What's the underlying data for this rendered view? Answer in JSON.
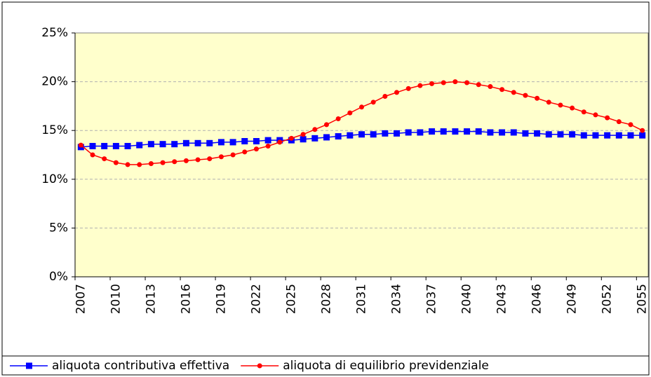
{
  "chart_data": {
    "type": "line",
    "categories": [
      "2007",
      null,
      null,
      "2010",
      null,
      null,
      "2013",
      null,
      null,
      "2016",
      null,
      null,
      "2019",
      null,
      null,
      "2022",
      null,
      null,
      "2025",
      null,
      null,
      "2028",
      null,
      null,
      "2031",
      null,
      null,
      "2034",
      null,
      null,
      "2037",
      null,
      null,
      "2040",
      null,
      null,
      "2043",
      null,
      null,
      "2046",
      null,
      null,
      "2049",
      null,
      null,
      "2052",
      null,
      null,
      "2055"
    ],
    "series": [
      {
        "name": "aliquota contributiva effettiva",
        "color": "#0000ff",
        "marker": "square",
        "values": [
          13.3,
          13.4,
          13.4,
          13.4,
          13.4,
          13.5,
          13.6,
          13.6,
          13.6,
          13.7,
          13.7,
          13.7,
          13.8,
          13.8,
          13.9,
          13.9,
          14.0,
          14.0,
          14.0,
          14.1,
          14.2,
          14.3,
          14.4,
          14.5,
          14.6,
          14.6,
          14.7,
          14.7,
          14.8,
          14.8,
          14.9,
          14.9,
          14.9,
          14.9,
          14.9,
          14.8,
          14.8,
          14.8,
          14.7,
          14.7,
          14.6,
          14.6,
          14.6,
          14.5,
          14.5,
          14.5,
          14.5,
          14.5,
          14.5
        ]
      },
      {
        "name": "aliquota di equilibrio previdenziale",
        "color": "#ff0000",
        "marker": "circle",
        "values": [
          13.5,
          12.5,
          12.1,
          11.7,
          11.5,
          11.5,
          11.6,
          11.7,
          11.8,
          11.9,
          12.0,
          12.1,
          12.3,
          12.5,
          12.8,
          13.1,
          13.4,
          13.8,
          14.2,
          14.6,
          15.1,
          15.6,
          16.2,
          16.8,
          17.4,
          17.9,
          18.5,
          18.9,
          19.3,
          19.6,
          19.8,
          19.9,
          20.0,
          19.9,
          19.7,
          19.5,
          19.2,
          18.9,
          18.6,
          18.3,
          17.9,
          17.6,
          17.3,
          16.9,
          16.6,
          16.3,
          15.9,
          15.6,
          15.0
        ]
      }
    ],
    "ylim": [
      0,
      25
    ],
    "yticks": [
      {
        "value": 0,
        "label": "0%"
      },
      {
        "value": 5,
        "label": "5%"
      },
      {
        "value": 10,
        "label": "10%"
      },
      {
        "value": 15,
        "label": "15%"
      },
      {
        "value": 20,
        "label": "20%"
      },
      {
        "value": 25,
        "label": "25%"
      }
    ],
    "grid": true,
    "legend": "bottom"
  }
}
